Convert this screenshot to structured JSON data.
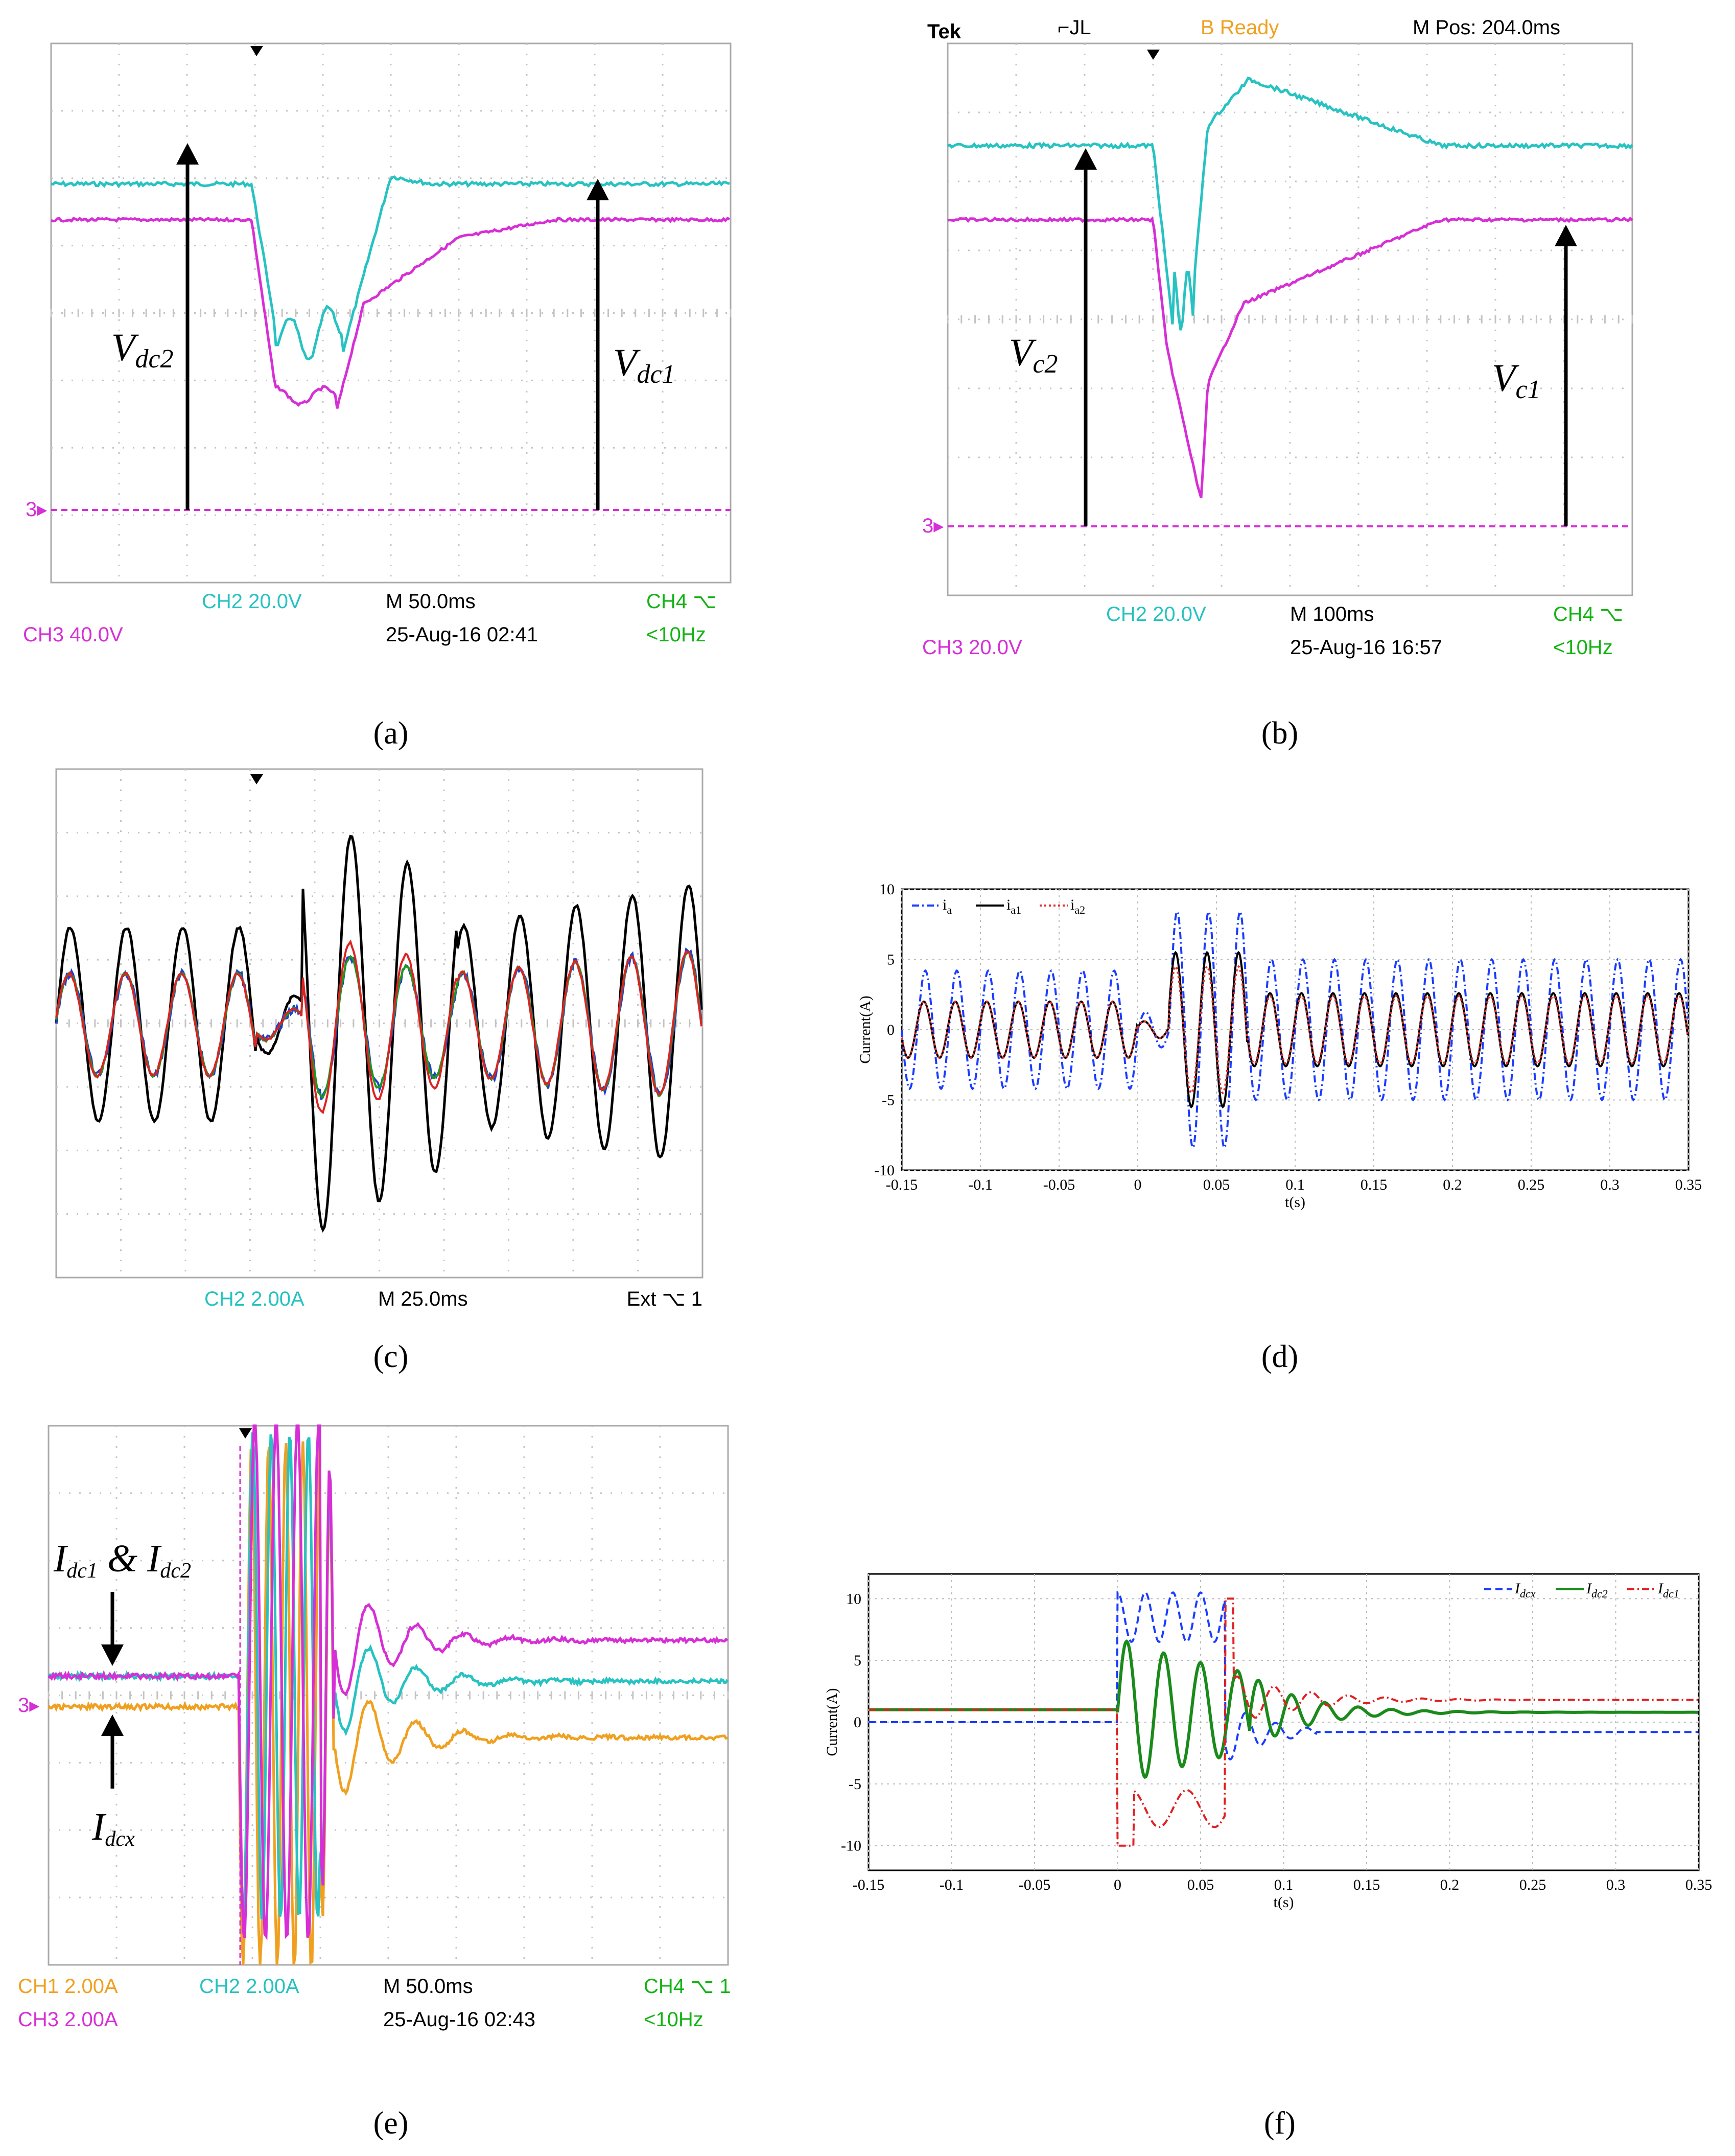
{
  "panels": [
    {
      "id": "a",
      "caption": "(a)",
      "readouts": {
        "ch2": "CH2  20.0V",
        "ch3": "CH3  40.0V",
        "timebase": "M 50.0ms",
        "date": "25-Aug-16 02:41",
        "ch4": "CH4 ⌥",
        "freq": "<10Hz"
      },
      "labels": [
        {
          "main": "V",
          "sub": "dc2"
        },
        {
          "main": "V",
          "sub": "dc1"
        }
      ],
      "marker": "3▸"
    },
    {
      "id": "b",
      "caption": "(b)",
      "header": {
        "brand": "Tek",
        "trig_icon": "⌐JL",
        "status": "B Ready",
        "mpos": "M Pos: 204.0ms"
      },
      "readouts": {
        "ch2": "CH2  20.0V",
        "ch3": "CH3  20.0V",
        "timebase": "M 100ms",
        "date": "25-Aug-16 16:57",
        "ch4": "CH4 ⌥",
        "freq": "<10Hz"
      },
      "labels": [
        {
          "main": "V",
          "sub": "c2"
        },
        {
          "main": "V",
          "sub": "c1"
        }
      ],
      "marker": "3▸"
    },
    {
      "id": "c",
      "caption": "(c)",
      "readouts": {
        "ch2": "CH2  2.00A",
        "timebase": "M 25.0ms",
        "ext": "Ext ⌥ 1"
      }
    },
    {
      "id": "d",
      "caption": "(d)",
      "chart_data": {
        "type": "line",
        "xlabel": "t(s)",
        "ylabel": "Current(A)",
        "xlim": [
          -0.15,
          0.35
        ],
        "ylim": [
          -10,
          10
        ],
        "xticks": [
          "-0.15",
          "-0.1",
          "-0.05",
          "0",
          "0.05",
          "0.1",
          "0.15",
          "0.2",
          "0.25",
          "0.3",
          "0.35"
        ],
        "yticks": [
          "10",
          "5",
          "0",
          "-5",
          "-10"
        ],
        "grid": true,
        "legend_position": "top-left",
        "series": [
          {
            "name": "i",
            "sub": "a",
            "color": "#1a3cff",
            "style": "dash-dot",
            "amplitude_pre": 4.2,
            "amplitude_post": 5.0,
            "peak_transient": 8.4
          },
          {
            "name": "i",
            "sub": "a1",
            "color": "#000000",
            "style": "solid",
            "amplitude_pre": 2.0,
            "amplitude_post": 2.6,
            "peak_transient": 5.5
          },
          {
            "name": "i",
            "sub": "a2",
            "color": "#e03030",
            "style": "dotted",
            "amplitude_pre": 2.0,
            "amplitude_post": 2.4,
            "peak_transient": 4.5
          }
        ],
        "frequency_hz": 50
      }
    },
    {
      "id": "e",
      "caption": "(e)",
      "readouts": {
        "ch1": "CH1  2.00A",
        "ch2": "CH2  2.00A",
        "ch3": "CH3  2.00A",
        "timebase": "M 50.0ms",
        "date": "25-Aug-16 02:43",
        "ch4": "CH4 ⌥ 1",
        "freq": "<10Hz"
      },
      "labels": [
        {
          "text": "I",
          "sub1": "dc1",
          "amp": " & I",
          "sub2": "dc2"
        },
        {
          "main": "I",
          "sub": "dcx"
        }
      ],
      "marker": "3▸"
    },
    {
      "id": "f",
      "caption": "(f)",
      "chart_data": {
        "type": "line",
        "xlabel": "t(s)",
        "ylabel": "Current(A)",
        "xlim": [
          -0.15,
          0.35
        ],
        "ylim": [
          -12,
          12
        ],
        "xticks": [
          "-0.15",
          "-0.1",
          "-0.05",
          "0",
          "0.05",
          "0.1",
          "0.15",
          "0.2",
          "0.25",
          "0.3",
          "0.35"
        ],
        "yticks": [
          "10",
          "5",
          "0",
          "-5",
          "-10"
        ],
        "grid": true,
        "legend_position": "top-right",
        "series": [
          {
            "name": "I",
            "sub": "dcx",
            "color": "#1a3cff",
            "style": "dashed",
            "pre_value": 0,
            "post_value": -0.8
          },
          {
            "name": "I",
            "sub": "dc2",
            "color": "#1a8a1a",
            "style": "solid",
            "pre_value": 1.0,
            "post_value": 0.8
          },
          {
            "name": "I",
            "sub": "dc1",
            "color": "#e02020",
            "style": "dash-dot",
            "pre_value": 1.0,
            "post_value": 1.8
          }
        ]
      }
    }
  ]
}
